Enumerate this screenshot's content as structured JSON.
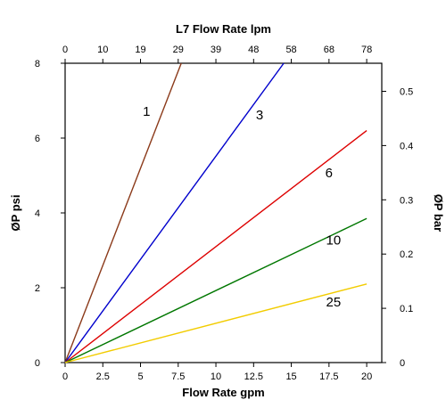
{
  "chart_data": {
    "type": "line",
    "title": "",
    "xlabel": "Flow Rate gpm",
    "x2label": "L7 Flow Rate lpm",
    "ylabel": "ØP psi",
    "y2label": "ØP bar",
    "xlim": [
      0,
      21
    ],
    "ylim": [
      0,
      8
    ],
    "x_ticks": [
      "0",
      "2.5",
      "5",
      "7.5",
      "10",
      "12.5",
      "15",
      "17.5",
      "20"
    ],
    "x2_ticks": [
      "0",
      "10",
      "19",
      "29",
      "39",
      "48",
      "58",
      "68",
      "78"
    ],
    "y_ticks": [
      "0",
      "2",
      "4",
      "6",
      "8"
    ],
    "y2lim": [
      0,
      0.5517
    ],
    "y2_ticks": [
      "0",
      "0.1",
      "0.2",
      "0.3",
      "0.4",
      "0.5"
    ],
    "grid": false,
    "legend": "inline labels",
    "series": [
      {
        "name": "1",
        "color": "#8B3A1A",
        "x": [
          0,
          7.7
        ],
        "y": [
          0,
          8.0
        ],
        "label_at": [
          5.4,
          6.6
        ]
      },
      {
        "name": "3",
        "color": "#0000CC",
        "x": [
          0,
          14.5
        ],
        "y": [
          0,
          8.0
        ],
        "label_at": [
          12.9,
          6.5
        ]
      },
      {
        "name": "6",
        "color": "#DD0000",
        "x": [
          0,
          20
        ],
        "y": [
          0,
          6.2
        ],
        "label_at": [
          17.5,
          4.95
        ]
      },
      {
        "name": "10",
        "color": "#007700",
        "x": [
          0,
          20
        ],
        "y": [
          0,
          3.85
        ],
        "label_at": [
          17.8,
          3.15
        ]
      },
      {
        "name": "25",
        "color": "#F2CC00",
        "x": [
          0,
          20
        ],
        "y": [
          0,
          2.1
        ],
        "label_at": [
          17.8,
          1.5
        ]
      }
    ]
  }
}
